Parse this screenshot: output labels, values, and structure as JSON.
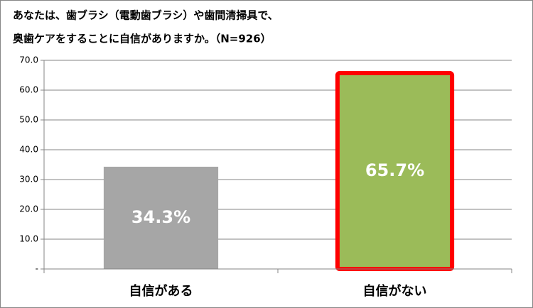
{
  "chart_data": {
    "type": "bar",
    "title": [
      "あなたは、歯ブラシ（電動歯ブラシ）や歯間清掃具で、",
      "奥歯ケアをすることに自信がありますか。（N=926）"
    ],
    "categories": [
      "自信がある",
      "自信がない"
    ],
    "values": [
      34.3,
      65.7
    ],
    "value_labels": [
      "34.3%",
      "65.7%"
    ],
    "colors": [
      "#a6a6a6",
      "#9bbb59"
    ],
    "highlight_index": 1,
    "highlight_color": "#ff0000",
    "ylim": [
      0,
      70
    ],
    "yticks": [
      {
        "value": 0,
        "label": "-"
      },
      {
        "value": 10,
        "label": "10.0"
      },
      {
        "value": 20,
        "label": "20.0"
      },
      {
        "value": 30,
        "label": "30.0"
      },
      {
        "value": 40,
        "label": "40.0"
      },
      {
        "value": 50,
        "label": "50.0"
      },
      {
        "value": 60,
        "label": "60.0"
      },
      {
        "value": 70,
        "label": "70.0"
      }
    ],
    "grid": true
  }
}
